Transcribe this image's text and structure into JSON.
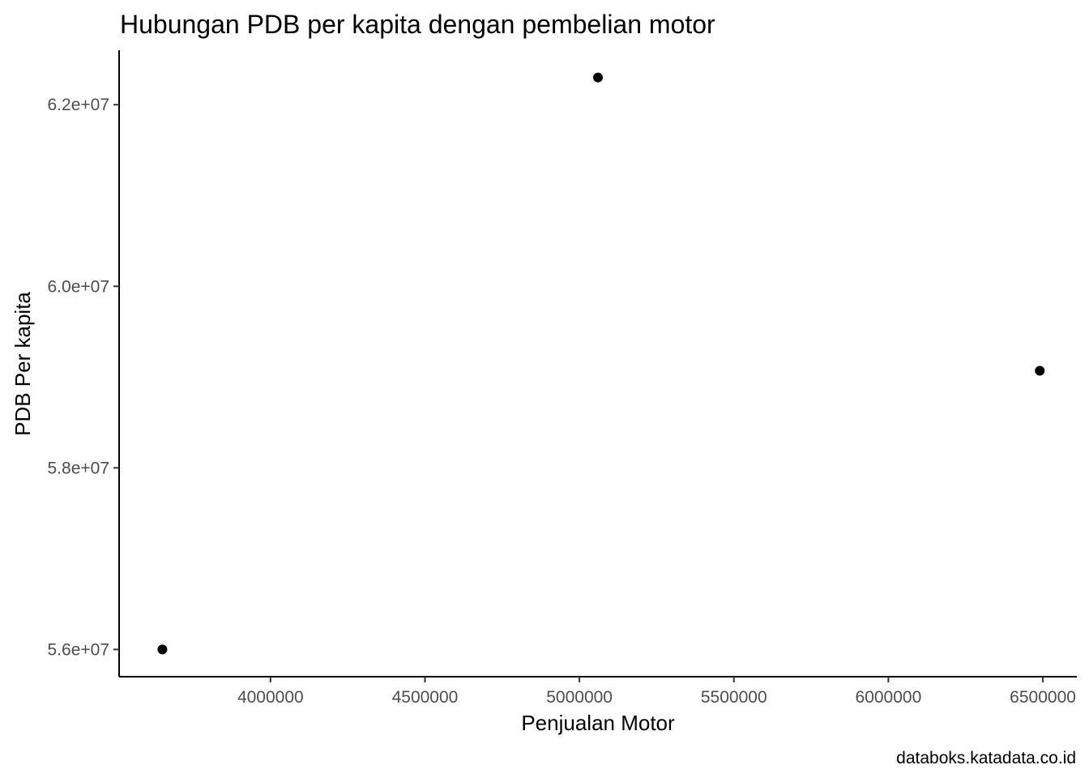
{
  "chart_data": {
    "type": "scatter",
    "title": "Hubungan PDB per kapita dengan pembelian motor",
    "xlabel": "Penjualan Motor",
    "ylabel": "PDB Per kapita",
    "caption": "databoks.katadata.co.id",
    "xlim": [
      3510000,
      6610000
    ],
    "ylim": [
      55700000,
      62600000
    ],
    "x_ticks": [
      {
        "value": 4000000,
        "label": "4000000"
      },
      {
        "value": 4500000,
        "label": "4500000"
      },
      {
        "value": 5000000,
        "label": "5000000"
      },
      {
        "value": 5500000,
        "label": "5500000"
      },
      {
        "value": 6000000,
        "label": "6000000"
      },
      {
        "value": 6500000,
        "label": "6500000"
      }
    ],
    "y_ticks": [
      {
        "value": 56000000,
        "label": "5.6e+07"
      },
      {
        "value": 58000000,
        "label": "5.8e+07"
      },
      {
        "value": 60000000,
        "label": "6.0e+07"
      },
      {
        "value": 62000000,
        "label": "6.2e+07"
      }
    ],
    "grid": false,
    "legend": "none",
    "point_color": "#000000",
    "axis_color": "#000000",
    "tick_label_color": "#4d4d4d",
    "points": [
      {
        "x": 3650000,
        "y": 56000000
      },
      {
        "x": 5060000,
        "y": 62300000
      },
      {
        "x": 6490000,
        "y": 59070000
      }
    ]
  }
}
